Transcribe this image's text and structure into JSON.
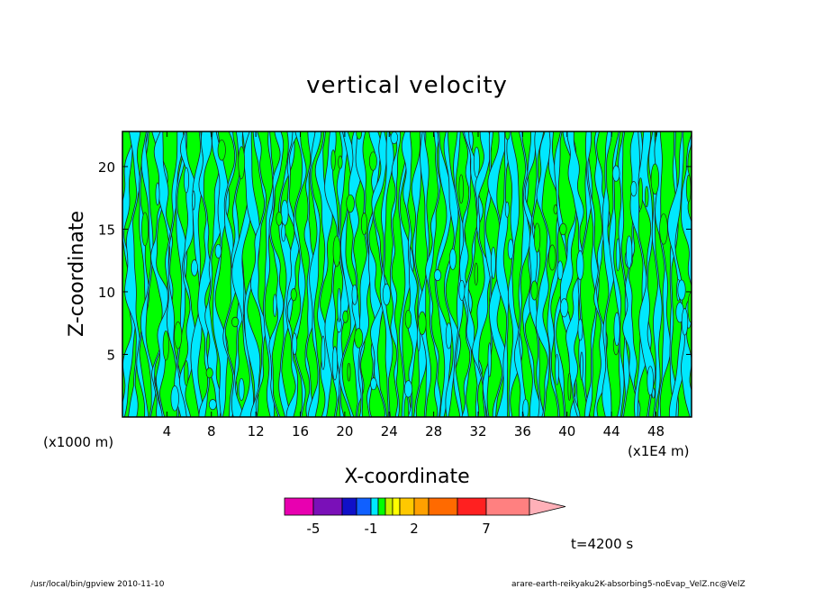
{
  "colors": {
    "background": "#ffffff",
    "frame": "#000000",
    "field_negative": "#00e8ff",
    "field_positive": "#00ff00",
    "contour_line": "#222222"
  },
  "chart_data": {
    "type": "heatmap",
    "title": "vertical velocity",
    "xlabel": "X-coordinate",
    "ylabel": "Z-coordinate",
    "x_unit_left": "(x1000 m)",
    "x_unit_right": "(x1E4 m)",
    "x_ticks": [
      "4",
      "8",
      "12",
      "16",
      "20",
      "24",
      "28",
      "32",
      "36",
      "40",
      "44",
      "48"
    ],
    "y_ticks": [
      "5",
      "10",
      "15",
      "20"
    ],
    "xlim": [
      0,
      51.2
    ],
    "ylim": [
      0,
      22.8
    ],
    "grid": false,
    "colorbar": {
      "levels": [
        -7,
        -5,
        -3,
        -2,
        -1,
        -0.5,
        0,
        0.5,
        1,
        2,
        3,
        5,
        7,
        10
      ],
      "colors": [
        "#e800b0",
        "#7a10b8",
        "#1010c8",
        "#1060ff",
        "#00e8ff",
        "#00ff00",
        "#c8f000",
        "#ffff00",
        "#ffc800",
        "#ffa000",
        "#ff6a00",
        "#ff2020",
        "#ff8080",
        "#ffb0b8"
      ],
      "tick_labels": [
        "-5",
        "-1",
        "2",
        "7"
      ]
    },
    "time_label": "t=4200 s"
  },
  "footer": {
    "left": "/usr/local/bin/gpview   2010-11-10",
    "right": "arare-earth-reikyaku2K-absorbing5-noEvap_VelZ.nc@VelZ"
  }
}
